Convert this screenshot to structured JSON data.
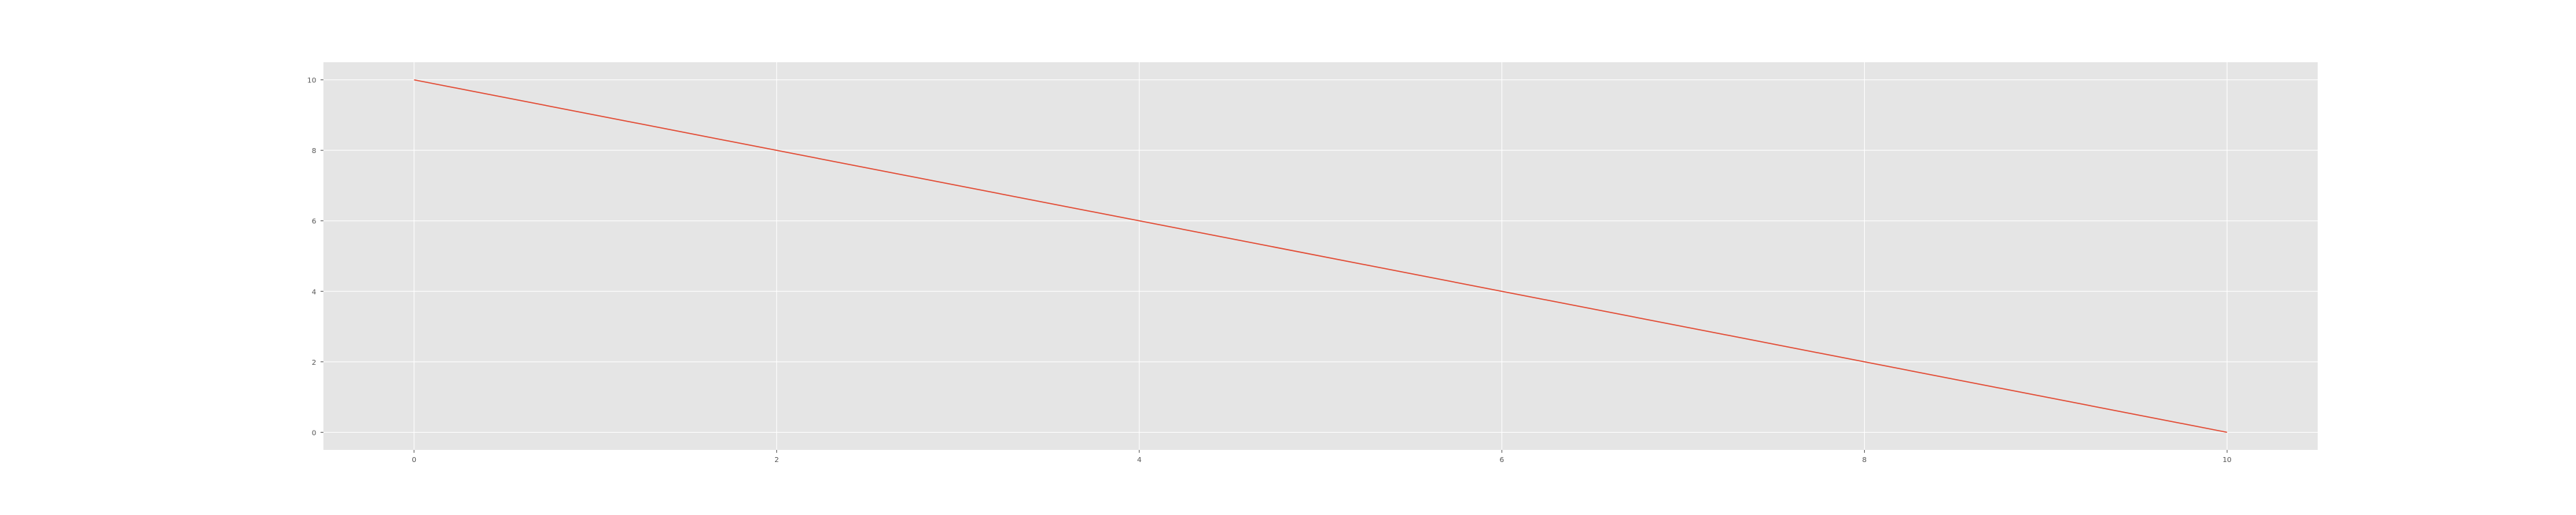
{
  "chart_data": {
    "type": "line",
    "title": "",
    "xlabel": "",
    "ylabel": "",
    "xlim": [
      -0.5,
      10.5
    ],
    "ylim": [
      -0.5,
      10.5
    ],
    "x_ticks": [
      0,
      2,
      4,
      6,
      8,
      10
    ],
    "y_ticks": [
      0,
      2,
      4,
      6,
      8,
      10
    ],
    "x_tick_labels": [
      "0",
      "2",
      "4",
      "6",
      "8",
      "10"
    ],
    "y_tick_labels": [
      "0",
      "2",
      "4",
      "6",
      "8",
      "10"
    ],
    "grid": true,
    "style": "ggplot",
    "series": [
      {
        "x": [
          0,
          10
        ],
        "values": [
          10,
          0
        ],
        "color": "#E24A33"
      }
    ]
  },
  "colors": {
    "plot_background": "#E5E5E5",
    "grid": "#FFFFFF",
    "line": "#E24A33",
    "tick_text": "#555555"
  }
}
